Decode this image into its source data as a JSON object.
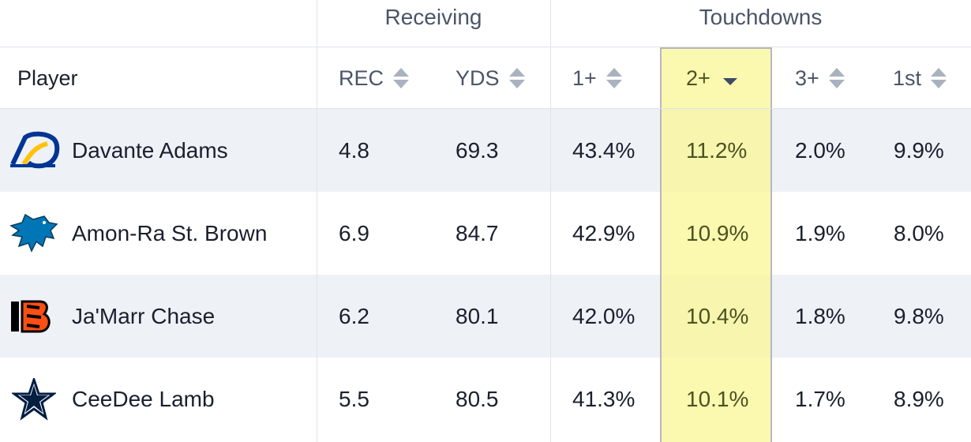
{
  "groups": {
    "receiving": "Receiving",
    "touchdowns": "Touchdowns"
  },
  "columns": {
    "player": "Player",
    "rec": "REC",
    "yds": "YDS",
    "td1": "1+",
    "td2": "2+",
    "td3": "3+",
    "first": "1st"
  },
  "sort": {
    "active_column": "2+",
    "direction": "descending"
  },
  "rows": [
    {
      "team_icon": "rams-logo-icon",
      "player": "Davante Adams",
      "rec": "4.8",
      "yds": "69.3",
      "td1": "43.4%",
      "td2": "11.2%",
      "td3": "2.0%",
      "first": "9.9%"
    },
    {
      "team_icon": "lions-logo-icon",
      "player": "Amon-Ra St. Brown",
      "rec": "6.9",
      "yds": "84.7",
      "td1": "42.9%",
      "td2": "10.9%",
      "td3": "1.9%",
      "first": "8.0%"
    },
    {
      "team_icon": "bengals-logo-icon",
      "player": "Ja'Marr Chase",
      "rec": "6.2",
      "yds": "80.1",
      "td1": "42.0%",
      "td2": "10.4%",
      "td3": "1.8%",
      "first": "9.8%"
    },
    {
      "team_icon": "cowboys-logo-icon",
      "player": "CeeDee Lamb",
      "rec": "5.5",
      "yds": "80.5",
      "td1": "41.3%",
      "td2": "10.1%",
      "td3": "1.7%",
      "first": "8.9%"
    }
  ],
  "colors": {
    "highlight": "#faf596",
    "row_alt": "#eef1f6",
    "rams_blue": "#003594",
    "rams_gold": "#ffc20e",
    "lions_blue": "#0076b6",
    "bengals_orange": "#fb4f14",
    "cowboys_navy": "#041e42"
  }
}
